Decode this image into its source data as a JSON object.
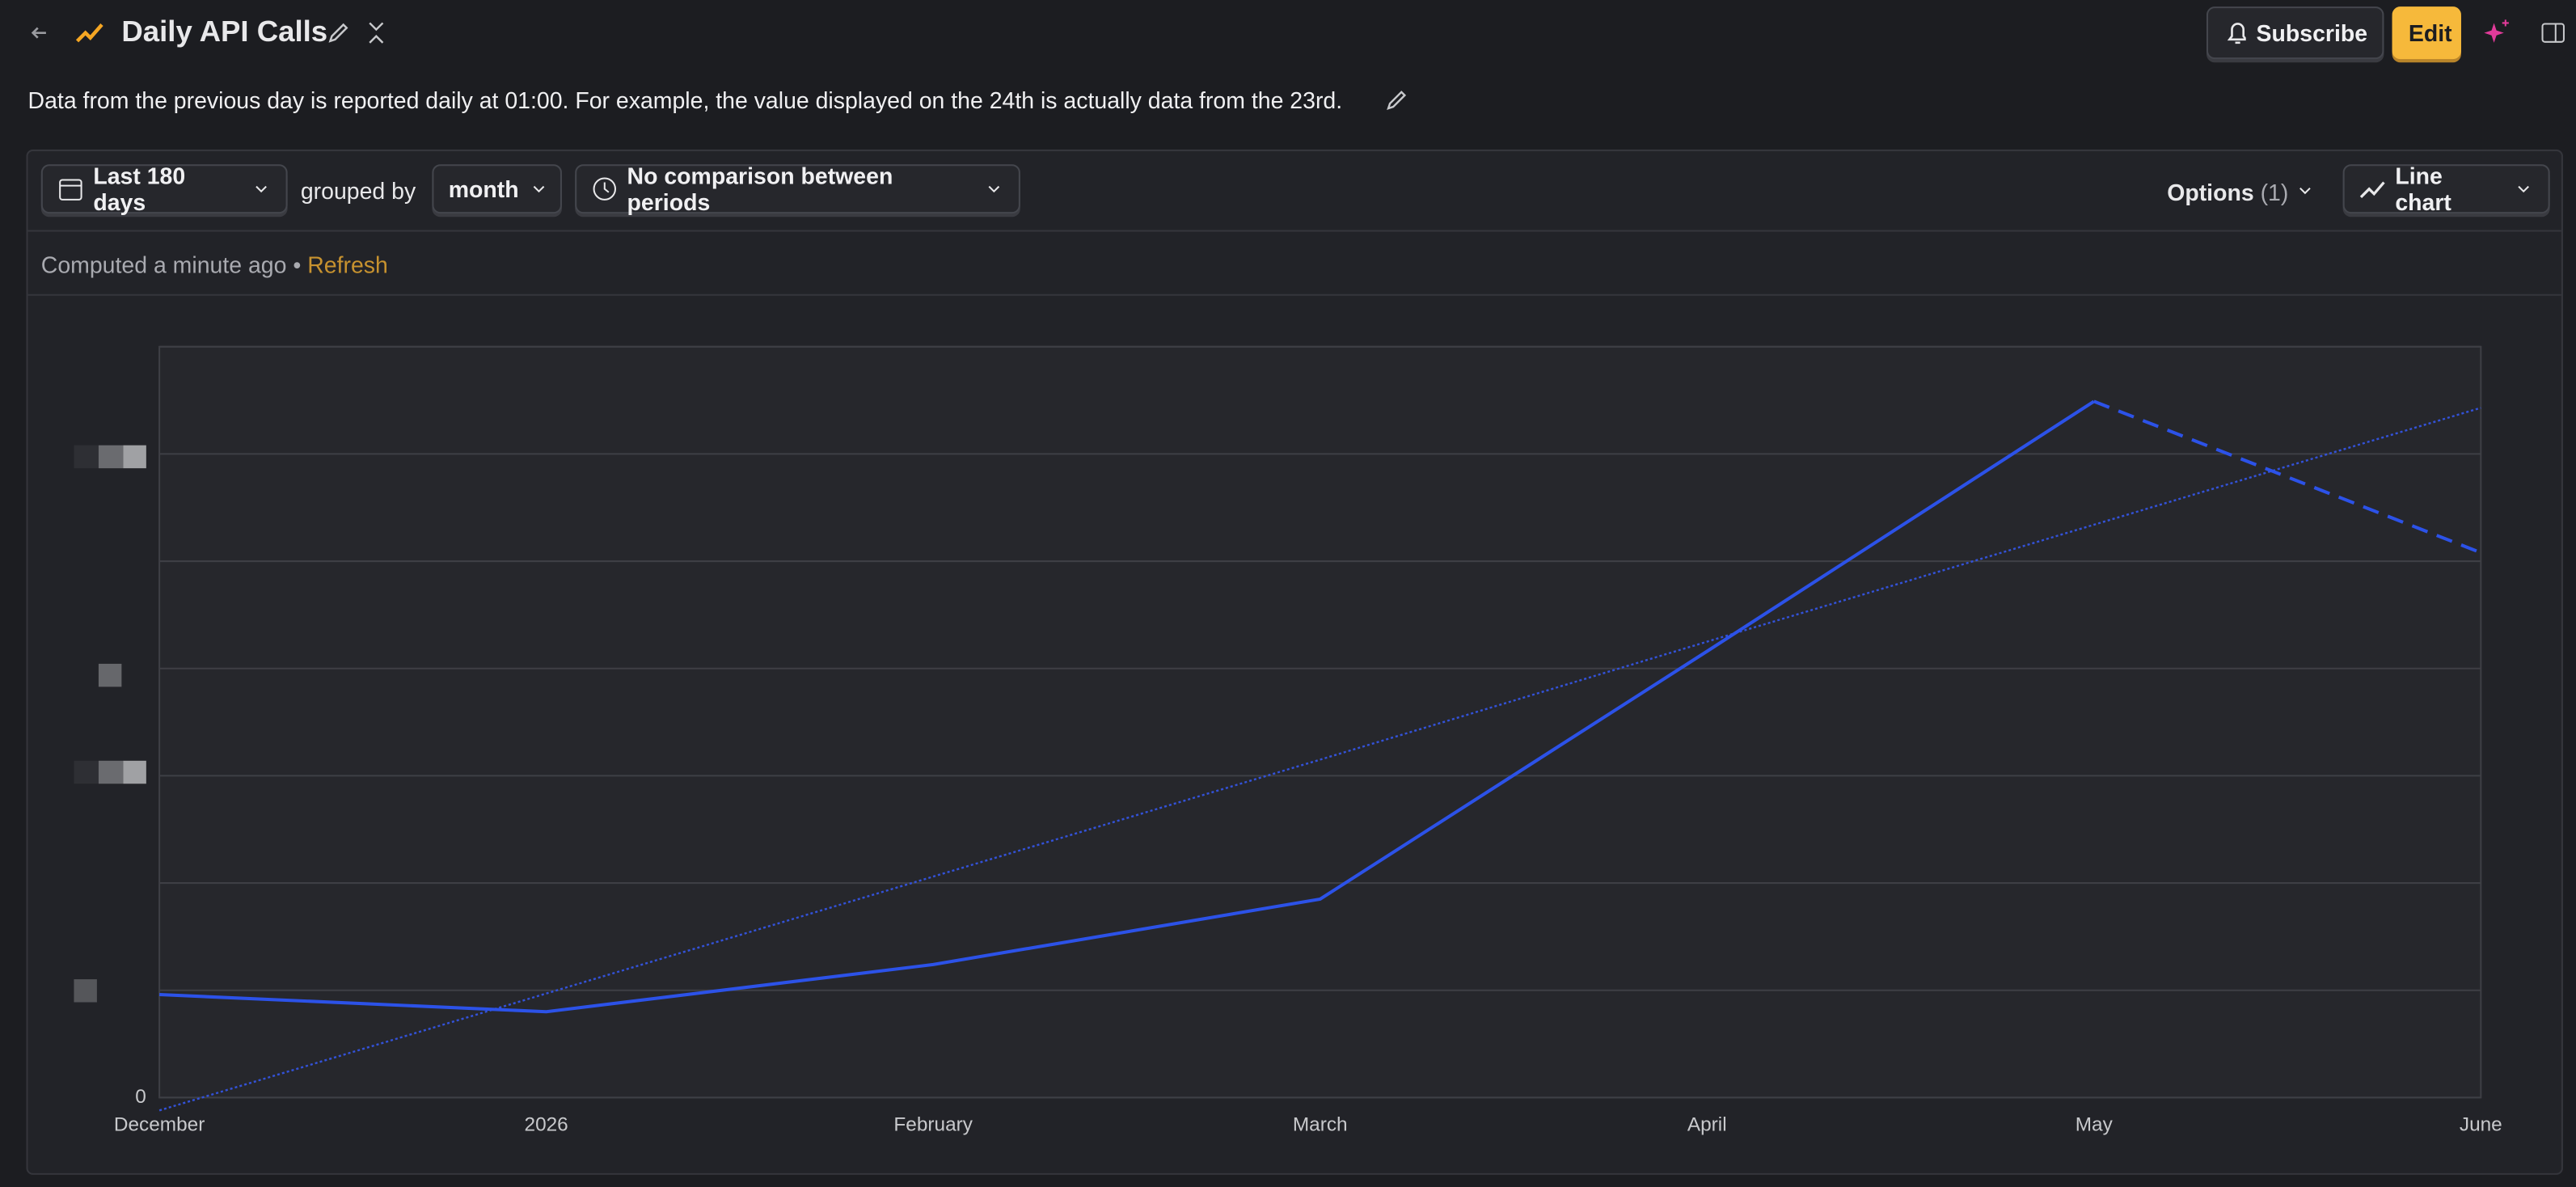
{
  "header": {
    "title": "Daily API Calls",
    "description": "Data from the previous day is reported daily at 01:00. For example, the value displayed on the 24th is actually data from the 23rd.",
    "subscribe": "Subscribe",
    "edit": "Edit"
  },
  "toolbar": {
    "date_range": "Last 180 days",
    "grouped_by": "grouped by",
    "interval": "month",
    "comparison": "No comparison between periods",
    "options": "Options",
    "options_count": "(1)",
    "chart_type": "Line chart"
  },
  "status": {
    "computed": "Computed a minute ago",
    "separator": "•",
    "refresh": "Refresh"
  },
  "chart_data": {
    "type": "line",
    "categories": [
      "December",
      "2026",
      "February",
      "March",
      "April",
      "May",
      "June"
    ],
    "series": [
      {
        "color": "#2c52e8",
        "values": [
          0.96,
          0.8,
          1.24,
          1.85,
          4.16,
          6.49,
          5.08
        ]
      }
    ],
    "incomplete_from": 5,
    "trendline": {
      "color": "#3352d8",
      "values": [
        -0.12,
        0.97,
        2.06,
        3.15,
        4.25,
        5.34,
        6.43
      ]
    },
    "ylim": [
      0,
      7
    ],
    "yticks": [
      0,
      {
        "value": 1,
        "label": null
      },
      {
        "value": 2,
        "label": null
      },
      {
        "value": 3,
        "label": null
      },
      {
        "value": 4,
        "label": null
      },
      {
        "value": 5,
        "label": null
      },
      {
        "value": 6,
        "label": null
      },
      {
        "value": 7,
        "label": null
      }
    ],
    "grid": true
  }
}
